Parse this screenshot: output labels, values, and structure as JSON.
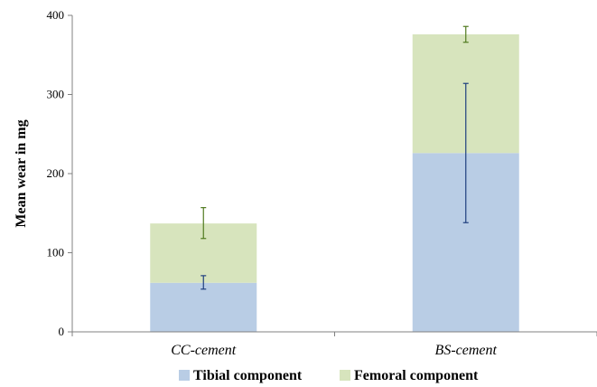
{
  "chart_data": {
    "type": "bar",
    "stacked": true,
    "categories": [
      "CC-cement",
      "BS-cement"
    ],
    "ylabel": "Mean wear in mg",
    "ylim": [
      0,
      400
    ],
    "yticks": [
      0,
      100,
      200,
      300,
      400
    ],
    "legend_position": "bottom",
    "grid": false,
    "series": [
      {
        "name": "Tibial component",
        "color": "#b9cde5",
        "error_color": "#1f3f7f",
        "values": [
          62,
          226
        ],
        "error_low": [
          54,
          138
        ],
        "error_high": [
          71,
          314
        ]
      },
      {
        "name": "Femoral component",
        "color": "#d7e4bd",
        "error_color": "#4f7a1f",
        "values": [
          75,
          150
        ],
        "error_low": [
          118,
          366
        ],
        "error_high": [
          157,
          386
        ]
      }
    ]
  }
}
